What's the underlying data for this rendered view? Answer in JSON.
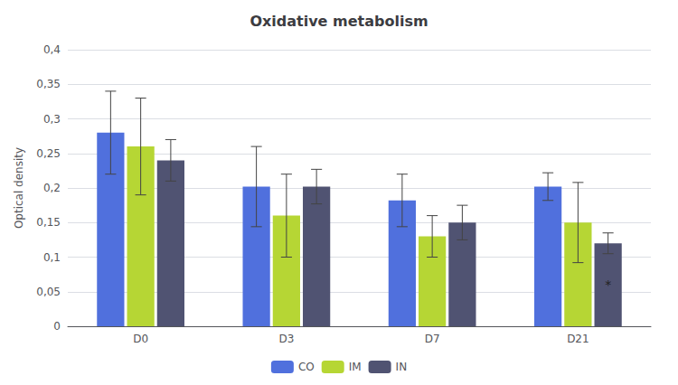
{
  "chart_data": {
    "type": "bar",
    "title": "Oxidative metabolism",
    "ylabel": "Optical density",
    "categories": [
      "D0",
      "D3",
      "D7",
      "D21"
    ],
    "series": [
      {
        "name": "CO",
        "values": [
          0.28,
          0.202,
          0.182,
          0.202
        ],
        "errors": [
          0.06,
          0.058,
          0.038,
          0.02
        ]
      },
      {
        "name": "IM",
        "values": [
          0.26,
          0.16,
          0.13,
          0.15
        ],
        "errors": [
          0.07,
          0.06,
          0.03,
          0.058
        ]
      },
      {
        "name": "IN",
        "values": [
          0.24,
          0.202,
          0.15,
          0.12
        ],
        "errors": [
          0.03,
          0.025,
          0.025,
          0.015
        ]
      }
    ],
    "ylim": [
      0,
      0.4
    ],
    "yticks": [
      0,
      {
        "value": 0.05,
        "label": "0,05"
      },
      {
        "value": 0.1,
        "label": "0,1"
      },
      {
        "value": 0.15,
        "label": "0,15"
      },
      {
        "value": 0.2,
        "label": "0,2"
      },
      {
        "value": 0.25,
        "label": "0,25"
      },
      {
        "value": 0.3,
        "label": "0,3"
      },
      {
        "value": 0.35,
        "label": "0,35"
      },
      {
        "value": 0.4,
        "label": "0,4"
      }
    ],
    "grid": true,
    "legend": "bottom",
    "annotations": [
      {
        "text": "*",
        "category": "D21",
        "series": "IN"
      }
    ]
  }
}
